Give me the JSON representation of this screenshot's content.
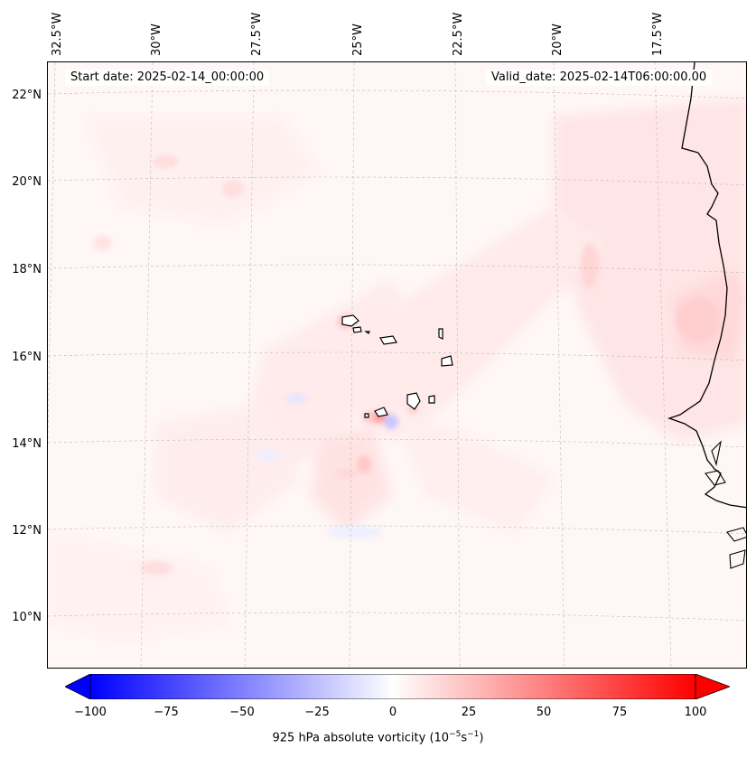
{
  "map": {
    "start_date": "Start date: 2025-02-14_00:00:00",
    "valid_date": "Valid_date: 2025-02-14T06:00:00.00",
    "lon_labels": [
      "32.5°W",
      "30°W",
      "27.5°W",
      "25°W",
      "22.5°W",
      "20°W",
      "17.5°W"
    ],
    "lat_labels": [
      "22°N",
      "20°N",
      "18°N",
      "16°N",
      "14°N",
      "12°N",
      "10°N"
    ],
    "region": "Cape Verde Islands and West African coast",
    "colors": {
      "negative": "#0000ff",
      "neutral": "#ffffff",
      "positive": "#ff0000",
      "coastline": "#000000"
    }
  },
  "colorbar": {
    "ticks": [
      "−100",
      "−75",
      "−50",
      "−25",
      "0",
      "25",
      "50",
      "75",
      "100"
    ],
    "label_prefix": "925 hPa absolute vorticity (10",
    "label_exp1": "−5",
    "label_mid": "s",
    "label_exp2": "−1",
    "label_suffix": ")",
    "range": [
      -100,
      100
    ],
    "extend": "both"
  }
}
